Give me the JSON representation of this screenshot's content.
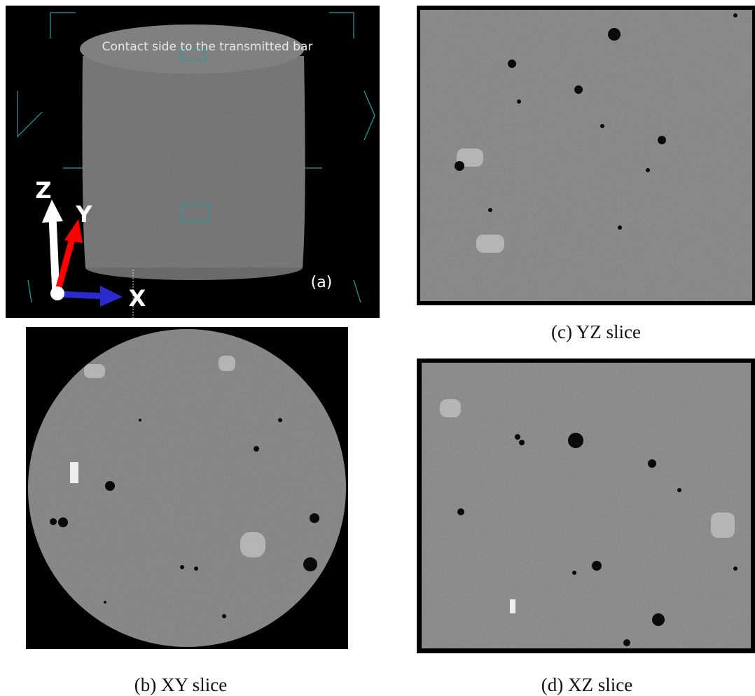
{
  "panel_a": {
    "annotation": "Contact side to the transmitted bar",
    "axis_z": "Z",
    "axis_y": "Y",
    "axis_x": "X",
    "label": "(a)"
  },
  "captions": {
    "b": "(b) XY slice",
    "c": "(c) YZ slice",
    "d": "(d) XZ slice"
  }
}
